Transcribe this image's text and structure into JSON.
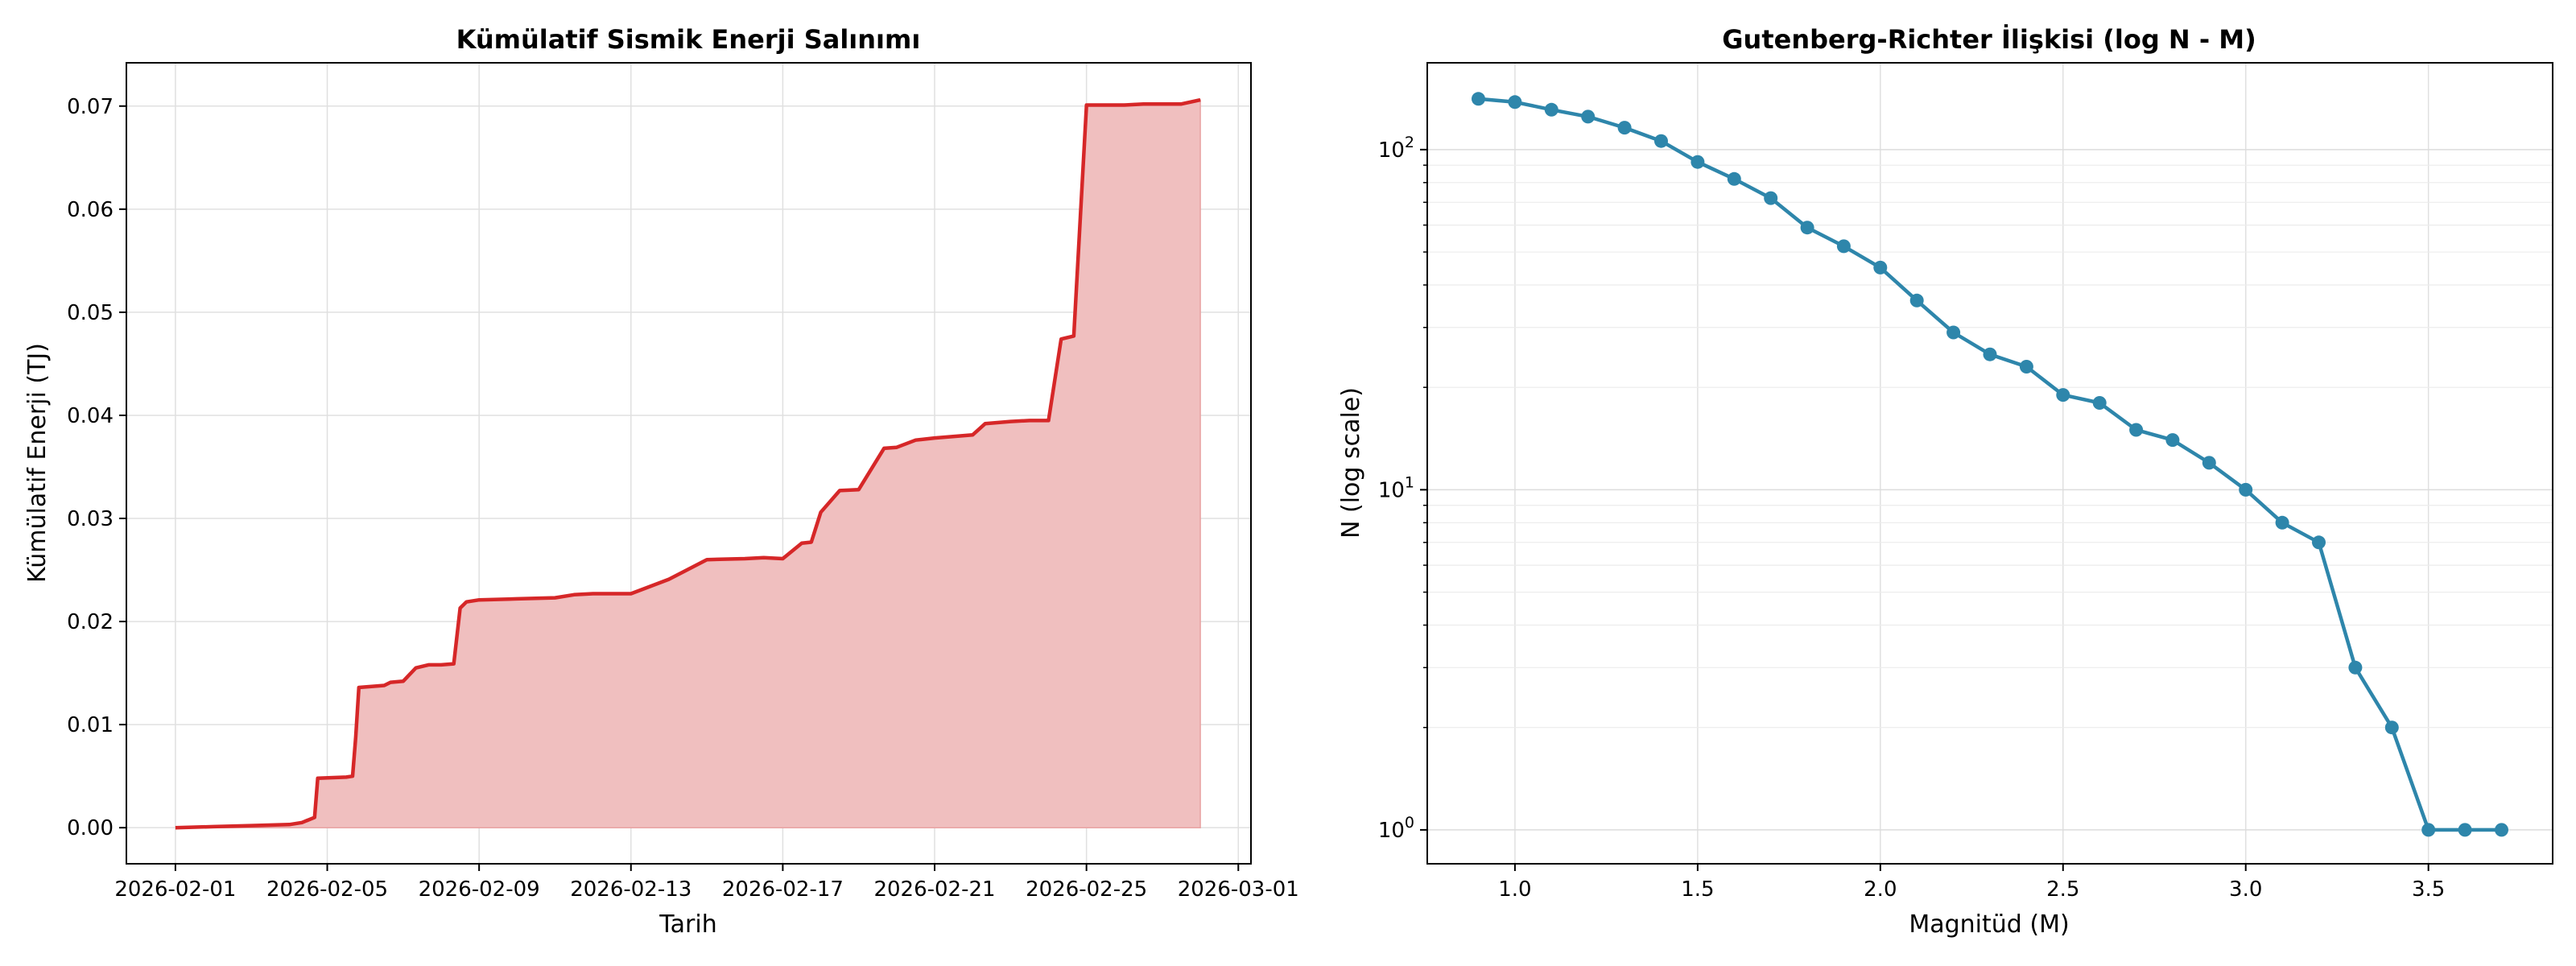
{
  "chart_data": [
    {
      "type": "area",
      "title": "Kümülatif Sismik Enerji Salınımı",
      "xlabel": "Tarih",
      "ylabel": "Kümülatif Enerji (TJ)",
      "x_ticks": [
        "2026-02-01",
        "2026-02-05",
        "2026-02-09",
        "2026-02-13",
        "2026-02-17",
        "2026-02-21",
        "2026-02-25",
        "2026-03-01"
      ],
      "y_ticks": [
        "0.00",
        "0.01",
        "0.02",
        "0.03",
        "0.04",
        "0.05",
        "0.06",
        "0.07"
      ],
      "xlim": [
        "2026-01-30T17:00",
        "2026-03-01T08:00"
      ],
      "ylim": [
        -0.0035,
        0.0742
      ],
      "grid": true,
      "line_color": "#d62728",
      "fill_color": "#f0bfbf",
      "series": [
        {
          "x": [
            "2026-02-01T00:00",
            "2026-02-02T00:00",
            "2026-02-03T00:00",
            "2026-02-04T00:00",
            "2026-02-04T08:00",
            "2026-02-04T16:00",
            "2026-02-04T18:00",
            "2026-02-05T12:00",
            "2026-02-05T16:00",
            "2026-02-05T18:00",
            "2026-02-05T20:00",
            "2026-02-06T12:00",
            "2026-02-06T16:00",
            "2026-02-07T00:00",
            "2026-02-07T08:00",
            "2026-02-07T16:00",
            "2026-02-08T00:00",
            "2026-02-08T08:00",
            "2026-02-08T12:00",
            "2026-02-08T16:00",
            "2026-02-09T00:00",
            "2026-02-10T00:00",
            "2026-02-11T00:00",
            "2026-02-11T12:00",
            "2026-02-12T00:00",
            "2026-02-13T00:00",
            "2026-02-14T00:00",
            "2026-02-15T00:00",
            "2026-02-16T00:00",
            "2026-02-16T12:00",
            "2026-02-17T00:00",
            "2026-02-17T12:00",
            "2026-02-17T18:00",
            "2026-02-18T00:00",
            "2026-02-18T12:00",
            "2026-02-19T00:00",
            "2026-02-19T16:00",
            "2026-02-20T00:00",
            "2026-02-20T12:00",
            "2026-02-21T00:00",
            "2026-02-22T00:00",
            "2026-02-22T08:00",
            "2026-02-23T00:00",
            "2026-02-23T12:00",
            "2026-02-24T00:00",
            "2026-02-24T08:00",
            "2026-02-24T16:00",
            "2026-02-25T00:00",
            "2026-02-26T00:00",
            "2026-02-26T12:00",
            "2026-02-27T12:00",
            "2026-02-28T00:00"
          ],
          "y": [
            0.0,
            0.0001,
            0.0002,
            0.0003,
            0.0005,
            0.001,
            0.0048,
            0.0049,
            0.005,
            0.0088,
            0.0136,
            0.0138,
            0.0141,
            0.0142,
            0.0155,
            0.0158,
            0.0158,
            0.0159,
            0.0213,
            0.0219,
            0.0221,
            0.0222,
            0.0223,
            0.0226,
            0.0227,
            0.0227,
            0.0241,
            0.026,
            0.0261,
            0.0262,
            0.0261,
            0.0276,
            0.0277,
            0.0306,
            0.0327,
            0.0328,
            0.0368,
            0.0369,
            0.0376,
            0.0378,
            0.0381,
            0.0392,
            0.0394,
            0.0395,
            0.0395,
            0.0474,
            0.0477,
            0.0701,
            0.0701,
            0.0702,
            0.0702,
            0.0706
          ]
        }
      ]
    },
    {
      "type": "line",
      "title": "Gutenberg-Richter İlişkisi (log N - M)",
      "xlabel": "Magnitüd (M)",
      "ylabel": "N (log scale)",
      "x_ticks": [
        "1.0",
        "1.5",
        "2.0",
        "2.5",
        "3.0",
        "3.5"
      ],
      "xlim": [
        0.76,
        3.84
      ],
      "ylim": [
        0.795,
        180
      ],
      "yscale": "log",
      "grid": true,
      "line_color": "#2e86ab",
      "series": [
        {
          "x": [
            0.9,
            1.0,
            1.1,
            1.2,
            1.3,
            1.4,
            1.5,
            1.6,
            1.7,
            1.8,
            1.9,
            2.0,
            2.1,
            2.2,
            2.3,
            2.4,
            2.5,
            2.6,
            2.7,
            2.8,
            2.9,
            3.0,
            3.1,
            3.2,
            3.3,
            3.4,
            3.5,
            3.6,
            3.7
          ],
          "y": [
            141,
            138,
            131,
            125,
            116,
            106,
            92,
            82,
            72,
            59,
            52,
            45,
            36,
            29,
            25,
            23,
            19,
            18,
            15,
            14,
            12,
            10,
            8,
            7,
            3,
            2,
            1,
            1,
            1
          ]
        }
      ]
    }
  ]
}
